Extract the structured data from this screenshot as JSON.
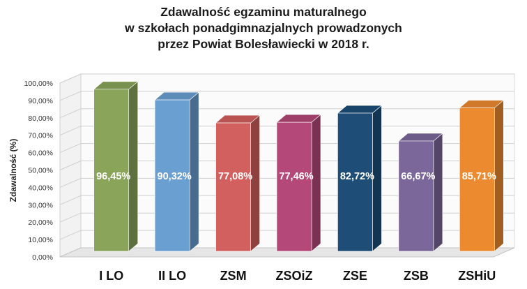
{
  "chart_data": {
    "type": "bar",
    "title_lines": [
      "Zdawalność egzaminu maturalnego",
      "w szkołach ponadgimnazjalnych prowadzonych",
      "przez Powiat Bolesławiecki w 2018 r."
    ],
    "ylabel": "Zdawalność (%)",
    "xlabel": "",
    "ylim": [
      0,
      100
    ],
    "y_ticks": [
      "0,00%",
      "10,00%",
      "20,00%",
      "30,00%",
      "40,00%",
      "50,00%",
      "60,00%",
      "70,00%",
      "80,00%",
      "90,00%",
      "100,00%"
    ],
    "categories": [
      "I LO",
      "II LO",
      "ZSM",
      "ZSOiZ",
      "ZSE",
      "ZSB",
      "ZSHiU"
    ],
    "values": [
      96.45,
      90.32,
      77.08,
      77.46,
      82.72,
      66.67,
      85.71
    ],
    "data_labels": [
      "96,45%",
      "90,32%",
      "77,08%",
      "77,46%",
      "82,72%",
      "66,67%",
      "85,71%"
    ],
    "colors": [
      "#8aa55a",
      "#6a9fd2",
      "#d2605e",
      "#b44878",
      "#1e4e78",
      "#7b679a",
      "#ec8a30"
    ],
    "grid": true,
    "style": "3d-column"
  }
}
